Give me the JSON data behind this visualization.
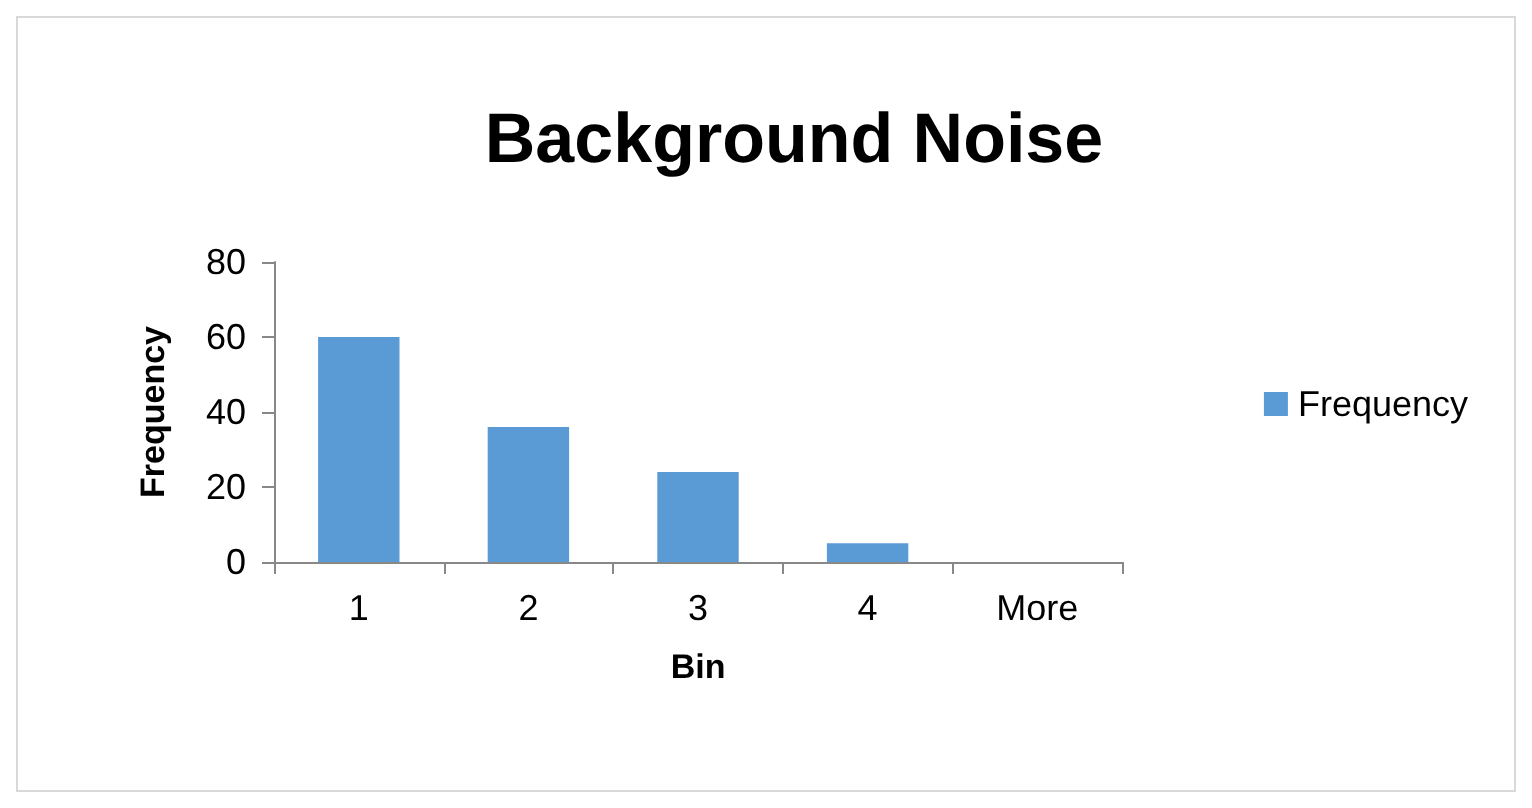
{
  "chart_data": {
    "type": "bar",
    "title": "Background Noise",
    "xlabel": "Bin",
    "ylabel": "Frequency",
    "categories": [
      "1",
      "2",
      "3",
      "4",
      "More"
    ],
    "series": [
      {
        "name": "Frequency",
        "color": "#5b9bd5",
        "values": [
          60,
          36,
          24,
          5,
          0
        ]
      }
    ],
    "ylim": [
      0,
      80
    ],
    "yticks": [
      0,
      20,
      40,
      60,
      80
    ],
    "grid": false,
    "legend": "right"
  }
}
